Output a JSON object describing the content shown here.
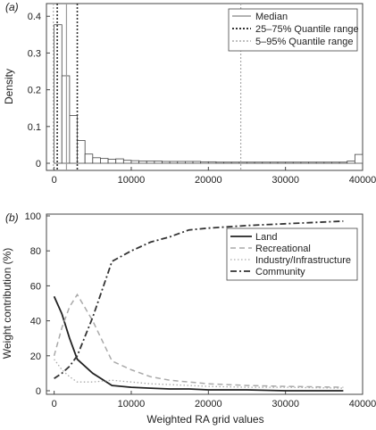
{
  "chart_data": [
    {
      "panel": "(a)",
      "type": "bar",
      "title": "",
      "xlabel": "",
      "ylabel": "Density",
      "xlim": [
        -1000,
        40000
      ],
      "ylim": [
        0,
        0.42
      ],
      "grid": false,
      "legend_position": "top-right",
      "x_ticks": [
        0,
        10000,
        20000,
        30000,
        40000
      ],
      "x_tick_labels": [
        "0",
        "10000",
        "20000",
        "30000",
        "40000"
      ],
      "y_ticks": [
        0,
        0.1,
        0.2,
        0.3,
        0.4
      ],
      "y_tick_labels": [
        "0",
        "0.1",
        "0.2",
        "0.3",
        "0.4"
      ],
      "bin_width": 1000,
      "bin_starts": [
        0,
        1000,
        2000,
        3000,
        4000,
        5000,
        6000,
        7000,
        8000,
        9000,
        10000,
        11000,
        12000,
        13000,
        14000,
        15000,
        16000,
        17000,
        18000,
        19000,
        20000,
        21000,
        22000,
        23000,
        24000,
        25000,
        26000,
        27000,
        28000,
        29000,
        30000,
        31000,
        32000,
        33000,
        34000,
        35000,
        36000,
        37000,
        38000,
        39000
      ],
      "values": [
        0.377,
        0.238,
        0.13,
        0.062,
        0.025,
        0.015,
        0.013,
        0.011,
        0.012,
        0.008,
        0.007,
        0.006,
        0.006,
        0.006,
        0.005,
        0.005,
        0.005,
        0.005,
        0.005,
        0.004,
        0.004,
        0.003,
        0.003,
        0.003,
        0.003,
        0.003,
        0.003,
        0.003,
        0.003,
        0.003,
        0.003,
        0.003,
        0.003,
        0.003,
        0.003,
        0.003,
        0.003,
        0.003,
        0.006,
        0.024
      ],
      "reference_lines": [
        {
          "name": "Median",
          "style": "solid",
          "x": [
            1600
          ]
        },
        {
          "name": "25–75% Quantile range",
          "style": "dotted-dark",
          "x": [
            400,
            3000
          ]
        },
        {
          "name": "5–95% Quantile range",
          "style": "dotted-light",
          "x": [
            -100,
            24200
          ]
        }
      ],
      "colors": {
        "bars": "#ffffff",
        "bar_edge": "#444444",
        "median": "#999999",
        "q25_75": "#333333",
        "q5_95": "#aaaaaa"
      }
    },
    {
      "panel": "(b)",
      "type": "line",
      "title": "",
      "xlabel": "Weighted RA grid values",
      "ylabel": "Weight contribution (%)",
      "xlim": [
        -1000,
        40000
      ],
      "ylim": [
        0,
        100
      ],
      "grid": false,
      "legend_position": "top-right",
      "x_ticks": [
        0,
        10000,
        20000,
        30000,
        40000
      ],
      "x_tick_labels": [
        "0",
        "10000",
        "20000",
        "30000",
        "40000"
      ],
      "y_ticks": [
        0,
        20,
        40,
        60,
        80,
        100
      ],
      "y_tick_labels": [
        "0",
        "20",
        "40",
        "60",
        "80",
        "100"
      ],
      "series": [
        {
          "name": "Land",
          "style": "solid",
          "color": "#222222",
          "x": [
            0,
            1000,
            2000,
            3000,
            5000,
            7500,
            10000,
            12500,
            15000,
            17500,
            20000,
            25000,
            30000,
            37500
          ],
          "y": [
            54,
            44,
            30,
            18,
            10,
            3,
            2,
            1.5,
            1,
            1,
            0.5,
            0.5,
            0,
            0
          ]
        },
        {
          "name": "Recreational",
          "style": "dashed",
          "color": "#aaaaaa",
          "x": [
            0,
            1000,
            2000,
            3000,
            5000,
            7500,
            10000,
            12500,
            15000,
            17500,
            20000,
            25000,
            30000,
            37500
          ],
          "y": [
            20,
            36,
            48,
            55,
            40,
            17,
            12,
            8,
            6,
            5,
            4,
            3,
            2.5,
            2
          ]
        },
        {
          "name": "Industry/Infrastructure",
          "style": "dotted",
          "color": "#aaaaaa",
          "x": [
            0,
            1000,
            2000,
            3000,
            5000,
            7500,
            10000,
            12500,
            15000,
            17500,
            20000,
            25000,
            30000,
            37500
          ],
          "y": [
            18,
            12,
            8,
            5,
            5,
            6,
            5,
            4,
            3.5,
            3,
            2.5,
            2,
            2,
            1.5
          ]
        },
        {
          "name": "Community",
          "style": "dash-dot",
          "color": "#333333",
          "x": [
            0,
            1000,
            2000,
            3000,
            5000,
            7500,
            10000,
            12500,
            15000,
            17500,
            20000,
            25000,
            30000,
            37500
          ],
          "y": [
            7,
            10,
            14,
            20,
            42,
            74,
            80,
            85,
            88,
            92,
            93,
            94.5,
            95.5,
            97
          ]
        }
      ]
    }
  ]
}
